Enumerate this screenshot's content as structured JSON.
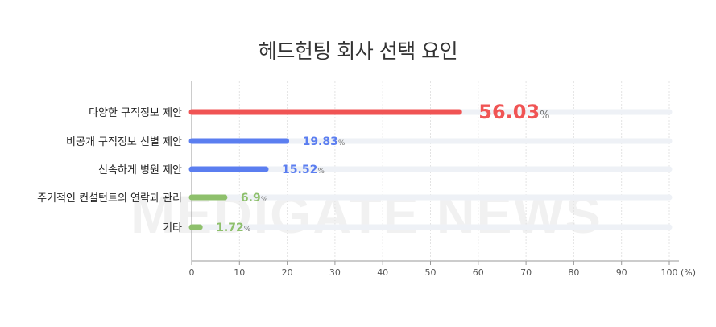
{
  "watermark": "MEDIGATE NEWS",
  "chart_data": {
    "type": "bar",
    "orientation": "horizontal",
    "title": "헤드헌팅 회사 선택 요인",
    "categories": [
      "다양한 구직정보 제안",
      "비공개 구직정보 선별 제안",
      "신속하게 병원 제안",
      "주기적인 컨설턴트의 연락과 관리",
      "기타"
    ],
    "values": [
      56.03,
      19.83,
      15.52,
      6.9,
      1.72
    ],
    "value_labels": [
      "56.03",
      "19.83",
      "15.52",
      "6.9",
      "1.72"
    ],
    "value_unit": "%",
    "bar_colors": [
      "#f05454",
      "#5b7ef0",
      "#5b7ef0",
      "#8ec06c",
      "#8ec06c"
    ],
    "track_color": "#eef1f6",
    "xlim": [
      0,
      100
    ],
    "xticks": [
      0,
      10,
      20,
      30,
      40,
      50,
      60,
      70,
      80,
      90,
      100
    ],
    "x_unit_label": "(%)",
    "grid": true
  }
}
